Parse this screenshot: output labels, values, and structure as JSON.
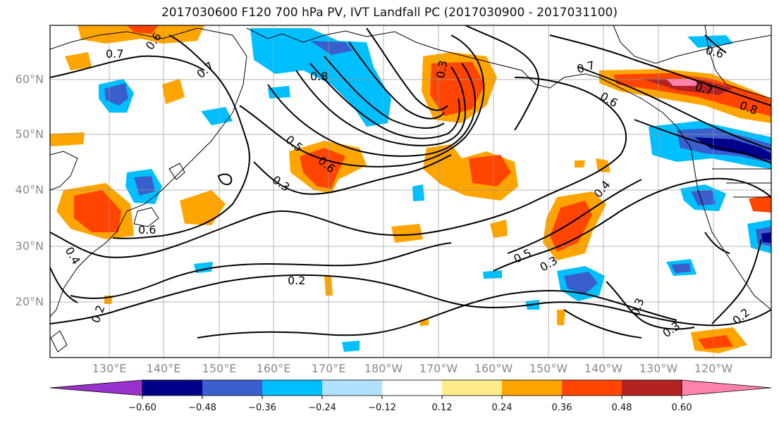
{
  "title": "2017030600 F120 700 hPa PV, IVT Landfall PC (2017030900 - 2017031100)",
  "lat_labels": [
    "60°N",
    "50°N",
    "40°N",
    "30°N",
    "20°N"
  ],
  "lon_labels": [
    "130°E",
    "140°E",
    "150°E",
    "160°E",
    "170°E",
    "180°W",
    "170°W",
    "160°W",
    "150°W",
    "140°W",
    "130°W",
    "120°W"
  ],
  "colorbar": {
    "ticks": [
      "−0.60",
      "−0.48",
      "−0.36",
      "−0.24",
      "−0.12",
      "0.12",
      "0.24",
      "0.36",
      "0.48",
      "0.60"
    ],
    "colors": [
      "#9932cc",
      "#00008b",
      "#3a5fcd",
      "#00bfff",
      "#b0e2ff",
      "#ffffff",
      "#ffec8b",
      "#ffa500",
      "#ff4500",
      "#b22222",
      "#ff82ab"
    ]
  },
  "contour_labels": [
    "0.7",
    "0.6",
    "0.7",
    "0.8",
    "0.5",
    "0.6",
    "0.3",
    "0.3",
    "0.6",
    "0.4",
    "0.2",
    "0.2",
    "0.5",
    "0.3",
    "0.4",
    "0.7",
    "0.6",
    "0.7",
    "0.8",
    "0.6",
    "0.3",
    "0.3",
    "0.2"
  ]
}
